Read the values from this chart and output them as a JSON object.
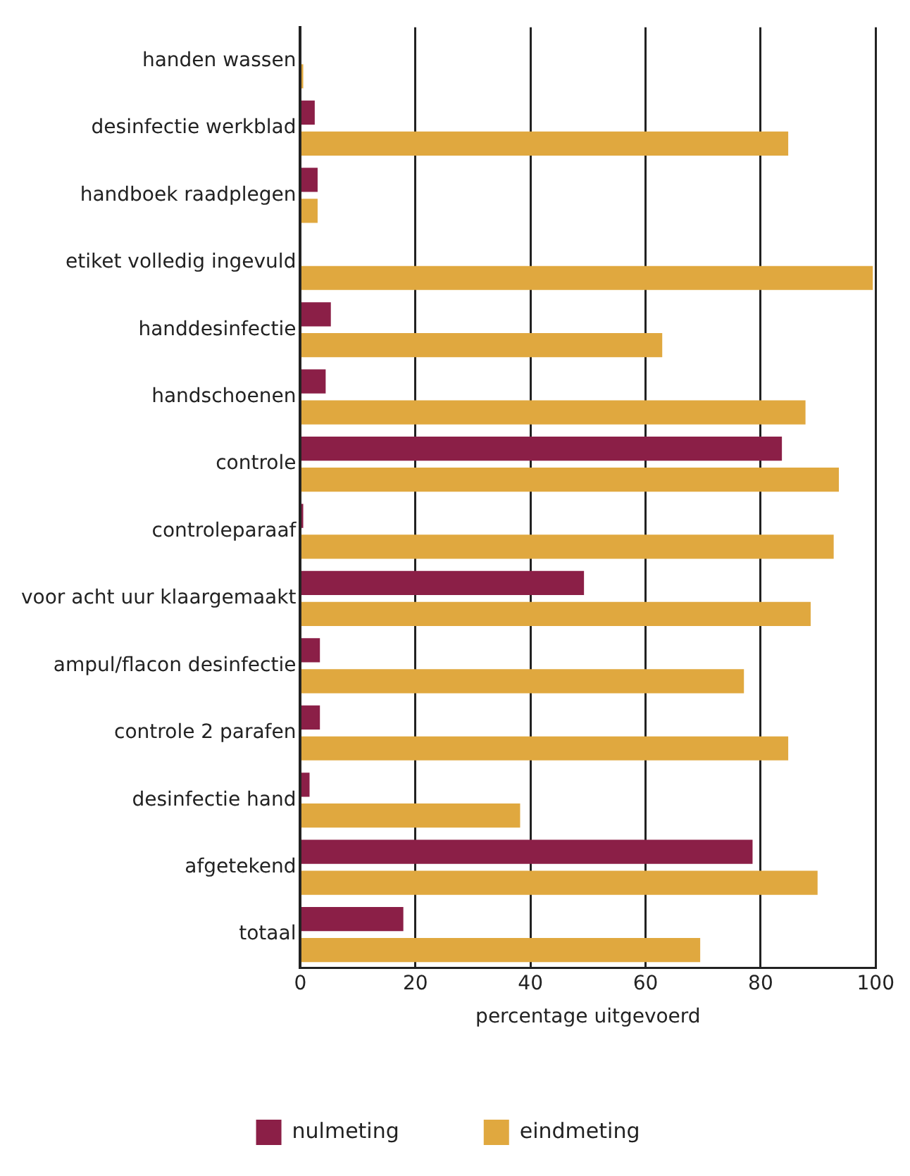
{
  "chart_data": {
    "type": "bar",
    "orientation": "horizontal",
    "xlabel": "percentage uitgevoerd",
    "categories": [
      "handen wassen",
      "desinfectie werkblad",
      "handboek raadplegen",
      "etiket volledig ingevuld",
      "handdesinfectie",
      "handschoenen",
      "controle",
      "controleparaaf",
      "voor acht uur klaargemaakt",
      "ampul/flacon desinfectie",
      "controle 2 parafen",
      "desinfectie hand",
      "afgetekend",
      "totaal"
    ],
    "series": [
      {
        "name": "nulmeting",
        "color": "#8b1f47",
        "values": [
          0,
          2.5,
          3,
          0,
          5.3,
          4.4,
          83.7,
          0.5,
          49.3,
          3.4,
          3.4,
          1.6,
          78.6,
          17.9
        ]
      },
      {
        "name": "eindmeting",
        "color": "#e0a83f",
        "values": [
          0.5,
          84.8,
          3,
          99.5,
          62.9,
          87.8,
          93.6,
          92.7,
          88.7,
          77.1,
          84.8,
          38.2,
          89.9,
          69.5
        ]
      }
    ],
    "xlim": [
      0,
      100
    ],
    "xticks": [
      0,
      20,
      40,
      60,
      80,
      100
    ],
    "grid": "x",
    "legend": "bottom"
  }
}
